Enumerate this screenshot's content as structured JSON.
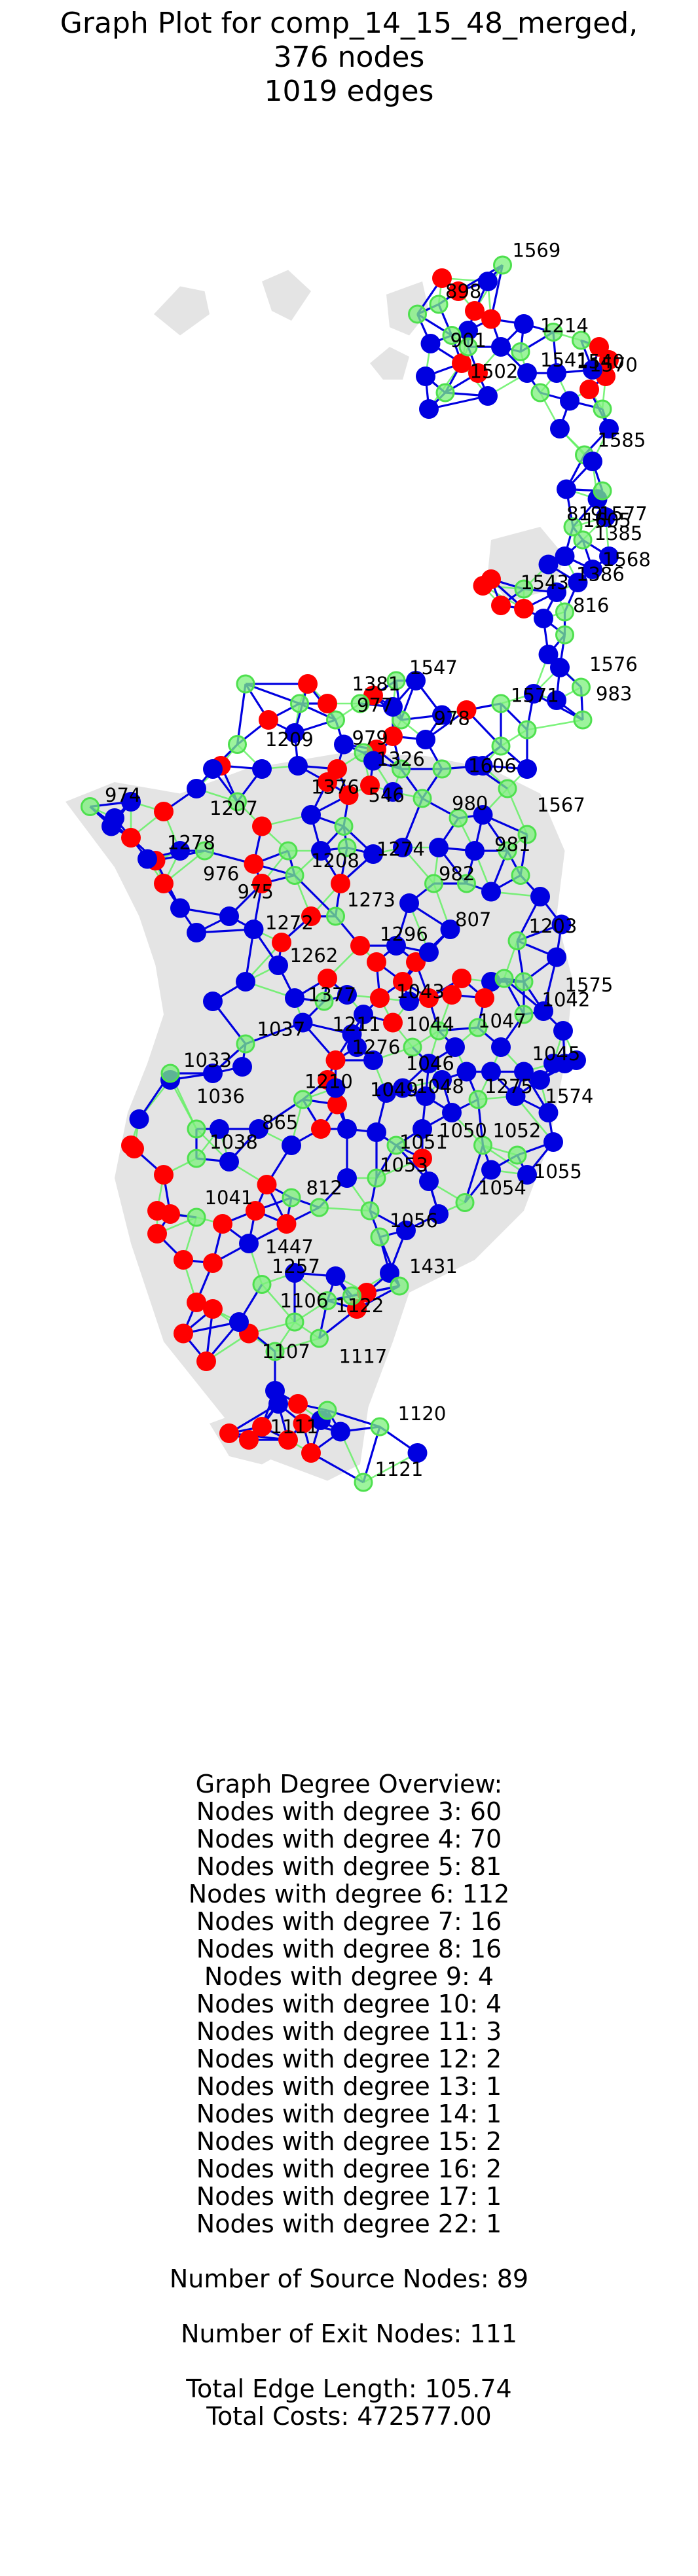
{
  "title_lines": [
    "Graph Plot for comp_14_15_48_merged,",
    "376 nodes",
    "1019 edges"
  ],
  "colors": {
    "background_region": "#e4e4e4",
    "blue_edge": "#0000e0",
    "green_edge": "#5cf05c",
    "blue_node": "#0000e0",
    "red_node": "#ff0000",
    "green_node": "#7cf07c"
  },
  "node_labels": [
    "1569",
    "898",
    "1214",
    "901",
    "1541",
    "1502",
    "1540",
    "1570",
    "1585",
    "819",
    "1577",
    "1605",
    "1385",
    "1568",
    "1386",
    "1543",
    "816",
    "1576",
    "1571",
    "983",
    "1547",
    "1381",
    "977",
    "1209",
    "979",
    "978",
    "1326",
    "1606",
    "1567",
    "974",
    "1207",
    "1376",
    "546",
    "980",
    "1278",
    "981",
    "1274",
    "1208",
    "976",
    "975",
    "982",
    "1273",
    "807",
    "1272",
    "1296",
    "1203",
    "1262",
    "1575",
    "1377",
    "1043",
    "1042",
    "1211",
    "1044",
    "1037",
    "1047",
    "1046",
    "1276",
    "1045",
    "1033",
    "1049",
    "1048",
    "1275",
    "1574",
    "1036",
    "1210",
    "865",
    "1038",
    "1050",
    "1052",
    "1051",
    "1053",
    "812",
    "1041",
    "1054",
    "1055",
    "1056",
    "1447",
    "1431",
    "1257",
    "1106",
    "1122",
    "1107",
    "1117",
    "1111",
    "1120",
    "1121"
  ],
  "summary": {
    "heading": "Graph Degree Overview:",
    "degree_lines": [
      "Nodes with degree 3: 60",
      "Nodes with degree 4: 70",
      "Nodes with degree 5: 81",
      "Nodes with degree 6: 112",
      "Nodes with degree 7: 16",
      "Nodes with degree 8: 16",
      "Nodes with degree 9: 4",
      "Nodes with degree 10: 4",
      "Nodes with degree 11: 3",
      "Nodes with degree 12: 2",
      "Nodes with degree 13: 1",
      "Nodes with degree 14: 1",
      "Nodes with degree 15: 2",
      "Nodes with degree 16: 2",
      "Nodes with degree 17: 1",
      "Nodes with degree 22: 1"
    ],
    "source_nodes": "Number of Source Nodes: 89",
    "exit_nodes": "Number of Exit Nodes: 111",
    "edge_length": "Total Edge Length: 105.74",
    "total_costs": "Total Costs: 472577.00"
  }
}
